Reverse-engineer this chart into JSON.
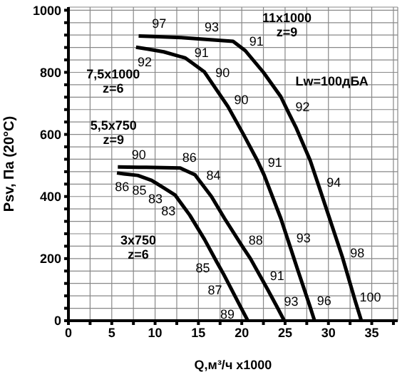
{
  "chart_data": {
    "type": "line",
    "xlabel": "Q,м³/ч x1000",
    "ylabel": "Psv, Па (20°C)",
    "xlim": [
      0,
      38
    ],
    "ylim": [
      0,
      1010
    ],
    "xticks": [
      0,
      {
        "value": 2.5,
        "label": null
      },
      5,
      {
        "value": 7.5,
        "label": null
      },
      10,
      {
        "value": 12.5,
        "label": null
      },
      15,
      {
        "value": 17.5,
        "label": null
      },
      20,
      {
        "value": 22.5,
        "label": null
      },
      25,
      {
        "value": 27.5,
        "label": null
      },
      30,
      {
        "value": 32.5,
        "label": null
      },
      35,
      {
        "value": 37.5,
        "label": null
      }
    ],
    "yticks": [
      0,
      {
        "value": 40,
        "label": null
      },
      {
        "value": 80,
        "label": null
      },
      {
        "value": 120,
        "label": null
      },
      {
        "value": 160,
        "label": null
      },
      200,
      {
        "value": 240,
        "label": null
      },
      {
        "value": 280,
        "label": null
      },
      {
        "value": 320,
        "label": null
      },
      {
        "value": 360,
        "label": null
      },
      400,
      {
        "value": 440,
        "label": null
      },
      {
        "value": 480,
        "label": null
      },
      {
        "value": 520,
        "label": null
      },
      {
        "value": 560,
        "label": null
      },
      600,
      {
        "value": 640,
        "label": null
      },
      {
        "value": 680,
        "label": null
      },
      {
        "value": 720,
        "label": null
      },
      {
        "value": 760,
        "label": null
      },
      800,
      {
        "value": 840,
        "label": null
      },
      {
        "value": 880,
        "label": null
      },
      {
        "value": 920,
        "label": null
      },
      {
        "value": 960,
        "label": null
      },
      1000
    ],
    "grid": true,
    "legend": false,
    "marker": "none",
    "line_style": "solid",
    "series": [
      {
        "name": "11x1000\nz=9",
        "color": "#000000",
        "x": [
          8.1,
          10.4,
          13,
          16.4,
          19,
          20.4,
          22.5,
          24.5,
          25.4,
          26.3,
          27.9,
          28.9,
          31.6,
          33.1,
          33.8
        ],
        "values": [
          917,
          915,
          912,
          905,
          900,
          870,
          800,
          722,
          670,
          620,
          516,
          433,
          206,
          63,
          0
        ]
      },
      {
        "name": "7,5x1000\nz=6",
        "color": "#000000",
        "x": [
          7.8,
          9.1,
          11,
          13.5,
          14.3,
          15.7,
          16.3,
          18.4,
          20.2,
          21.8,
          22.2,
          22.6,
          24.5,
          25.4,
          26.5,
          27.8,
          28.4
        ],
        "values": [
          881,
          875,
          866,
          846,
          830,
          801,
          776,
          690,
          600,
          516,
          492,
          468,
          330,
          254,
          160,
          52,
          0
        ]
      },
      {
        "name": "5,5x750\nz=9",
        "color": "#000000",
        "x": [
          5.7,
          8.1,
          9,
          12.9,
          13.2,
          14.6,
          15.3,
          16.5,
          18,
          20.1,
          21,
          22.5,
          23,
          24.1,
          24.9
        ],
        "values": [
          495,
          494,
          494,
          492,
          488,
          470,
          444,
          400,
          330,
          238,
          200,
          125,
          100,
          43,
          0
        ]
      },
      {
        "name": "3x750\nz=6",
        "color": "#000000",
        "x": [
          5.6,
          6.4,
          8,
          8.8,
          9.6,
          11,
          12.3,
          13,
          14,
          15.7,
          17.1,
          17.9,
          18.5,
          19.3,
          19.95,
          20.7
        ],
        "values": [
          476,
          473,
          468,
          460,
          452,
          428,
          405,
          378,
          340,
          262,
          190,
          150,
          118,
          75,
          40,
          0
        ]
      }
    ],
    "annotations": [
      "Lw=100дБА",
      {
        "text": "97",
        "x": 10.4,
        "y": 915
      },
      {
        "text": "93",
        "x": 16.4,
        "y": 905
      },
      {
        "text": "91",
        "x": 20.4,
        "y": 870
      },
      {
        "text": "92",
        "x": 25.4,
        "y": 670
      },
      {
        "text": "94",
        "x": 28.9,
        "y": 433
      },
      {
        "text": "98",
        "x": 31.6,
        "y": 206
      },
      {
        "text": "100",
        "x": 33.1,
        "y": 63
      },
      {
        "text": "92",
        "x": 9.1,
        "y": 875
      },
      {
        "text": "91",
        "x": 14.3,
        "y": 830
      },
      {
        "text": "90",
        "x": 16.3,
        "y": 776
      },
      {
        "text": "90",
        "x": 18.4,
        "y": 690
      },
      {
        "text": "91",
        "x": 22.2,
        "y": 492
      },
      {
        "text": "93",
        "x": 25.4,
        "y": 254
      },
      {
        "text": "96",
        "x": 27.8,
        "y": 52
      },
      {
        "text": "90",
        "x": 8.1,
        "y": 494
      },
      {
        "text": "86",
        "x": 13.2,
        "y": 488
      },
      {
        "text": "84",
        "x": 15.3,
        "y": 444
      },
      {
        "text": "88",
        "x": 20.1,
        "y": 238
      },
      {
        "text": "91",
        "x": 22.5,
        "y": 125
      },
      {
        "text": "93",
        "x": 24.1,
        "y": 43
      },
      {
        "text": "86",
        "x": 6.4,
        "y": 473
      },
      {
        "text": "85",
        "x": 8.8,
        "y": 460
      },
      {
        "text": "83",
        "x": 11,
        "y": 428
      },
      {
        "text": "83",
        "x": 13,
        "y": 378
      },
      {
        "text": "85",
        "x": 17.1,
        "y": 190
      },
      {
        "text": "87",
        "x": 18.5,
        "y": 118
      },
      {
        "text": "89",
        "x": 19.95,
        "y": 40
      }
    ]
  }
}
